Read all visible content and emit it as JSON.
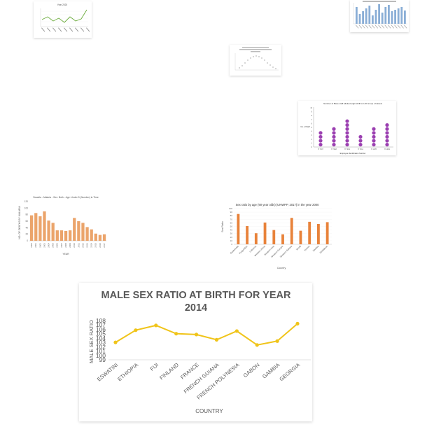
{
  "charts": {
    "line_thumb": {
      "title": "Year 2020",
      "line_color": "#6aab3a",
      "points": 9
    },
    "blue_thumb": {
      "bar_color": "#8aaed6",
      "bars": 16
    },
    "scatter_thumb": {
      "dot_color": "#9a9a9a"
    },
    "dot_plot": {
      "title": "Number of Base staff allotted eight shift for HO Group of Hotels",
      "ylabel": "No. of Staff",
      "xlabel": "Employee Identification Number",
      "dot_color": "#9b3fb1",
      "categories": [
        "H 7007",
        "H 7018",
        "H 7019",
        "H 7014",
        "H 1078",
        "H 1049"
      ],
      "values": [
        4,
        5,
        7,
        3,
        5,
        6
      ],
      "yticks": [
        "10",
        "9",
        "8",
        "7",
        "6",
        "5",
        "4",
        "3",
        "2",
        "1",
        "0"
      ]
    },
    "orange_bars": {
      "title": "Swazila - Malaria - Sex: Both - Age: Under 5 (Number) in Time",
      "ylabel": "NO. OF DEATHS BY MALARIA",
      "xlabel": "YEAR",
      "bar_color": "#eba46b",
      "categories": [
        "2000",
        "2001",
        "2002",
        "2003",
        "2004",
        "2005",
        "2006",
        "2007",
        "2008",
        "2009",
        "2010",
        "2011",
        "2012",
        "2013",
        "2014",
        "2015",
        "2016",
        "2017"
      ],
      "values": [
        78,
        85,
        75,
        90,
        62,
        55,
        32,
        32,
        30,
        32,
        70,
        60,
        55,
        42,
        35,
        22,
        18,
        20
      ],
      "ylim": [
        0,
        120
      ]
    },
    "sex_ratio_bars": {
      "title": "Sex ratio by age (90 year olds) (UNWPP, 2017) in the year 2000",
      "ylabel": "Sex Ratio",
      "xlabel": "Country",
      "bar_color": "#e8823a",
      "categories": [
        "Guatemala",
        "Kyrgyzstan",
        "Lebanon",
        "Western Africa",
        "Western Asia",
        "Western Europe",
        "Western Sahara",
        "World",
        "Yemen",
        "Zambia",
        "Zimbabwe"
      ],
      "values": [
        85,
        51,
        31,
        61,
        40,
        28,
        74,
        38,
        63,
        57,
        62
      ],
      "ylim": [
        0,
        100
      ]
    }
  },
  "chart_data": {
    "type": "line",
    "title": "MALE SEX RATIO AT BIRTH FOR YEAR 2014",
    "xlabel": "COUNTRY",
    "ylabel": "MALE SEX RATIO",
    "categories": [
      "ESWATINI",
      "ETHIOPIA",
      "FIJI",
      "FINLAND",
      "FRANCE",
      "FRENCH GUIANA",
      "FRENCH POLYNESIA",
      "GABON",
      "GAMBIA",
      "GEORGIA"
    ],
    "values": [
      103.0,
      105.8,
      106.9,
      105.0,
      104.8,
      103.6,
      105.6,
      102.4,
      103.3,
      107.3
    ],
    "yticks": [
      "108",
      "107",
      "106",
      "105",
      "104",
      "103",
      "102",
      "101",
      "100",
      "99"
    ],
    "ylim": [
      99,
      108
    ],
    "line_color": "#f0c419",
    "grid": false
  }
}
